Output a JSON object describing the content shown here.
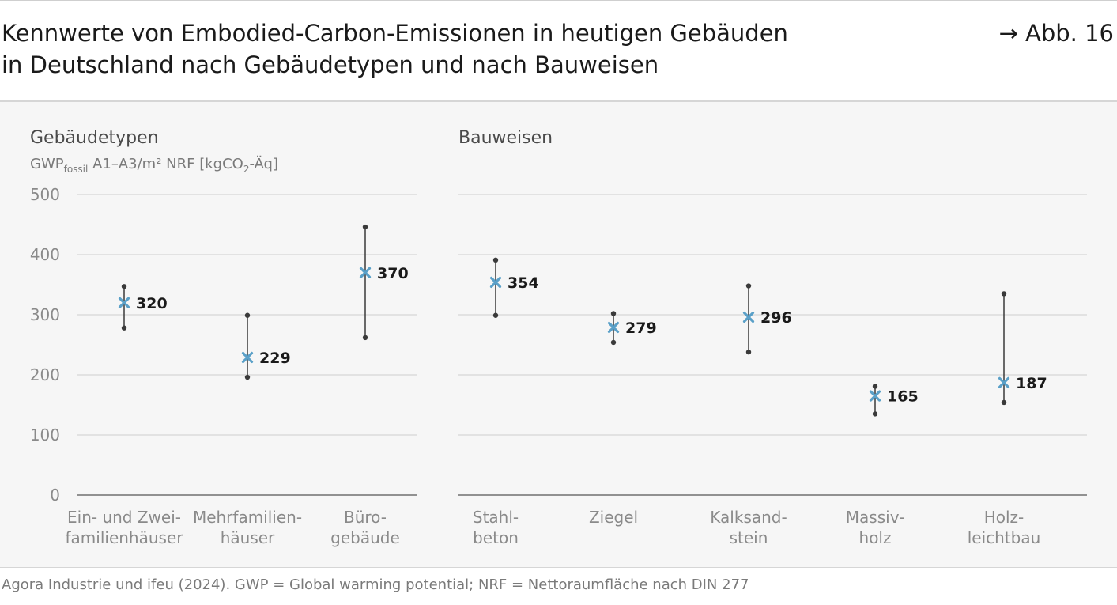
{
  "header": {
    "title_line1": "Kennwerte von Embodied-Carbon-Emissionen in heutigen Gebäuden",
    "title_line2": "in Deutschland nach Gebäudetypen und nach Bauweisen",
    "figure_ref": "→ Abb. 16"
  },
  "footer": {
    "source": "Agora Industrie und ifeu (2024). GWP = Global warming potential; NRF = Nettoraumfläche nach DIN 277"
  },
  "colors": {
    "marker": "#5aa0c8",
    "whisker": "#3a3a3a",
    "grid": "#dcdcdc",
    "axis": "#555555"
  },
  "chart_data": [
    {
      "type": "range-dot",
      "title": "Gebäudetypen",
      "unit": {
        "base": "GWP",
        "sub": "fossil",
        "rest": " A1–A3/m² NRF [kgCO",
        "sub2": "2",
        "tail": "-Äq]"
      },
      "yticks": [
        0,
        100,
        200,
        300,
        400,
        500
      ],
      "ylim": [
        0,
        500
      ],
      "grid": true,
      "categories": [
        [
          "Ein- und Zwei-",
          "familienhäuser"
        ],
        [
          "Mehrfamilien-",
          "häuser"
        ],
        [
          "Büro-",
          "gebäude"
        ]
      ],
      "mean": [
        320,
        229,
        370
      ],
      "min": [
        278,
        196,
        262
      ],
      "max": [
        347,
        299,
        446
      ]
    },
    {
      "type": "range-dot",
      "title": "Bauweisen",
      "yticks": [
        0,
        100,
        200,
        300,
        400,
        500
      ],
      "ylim": [
        0,
        500
      ],
      "grid": true,
      "categories": [
        [
          "Stahl-",
          "beton"
        ],
        [
          "Ziegel"
        ],
        [
          "Kalksand-",
          "stein"
        ],
        [
          "Massiv-",
          "holz"
        ],
        [
          "Holz-",
          "leichtbau"
        ]
      ],
      "mean": [
        354,
        279,
        296,
        165,
        187
      ],
      "min": [
        299,
        254,
        238,
        135,
        154
      ],
      "max": [
        391,
        302,
        348,
        181,
        335
      ]
    }
  ]
}
